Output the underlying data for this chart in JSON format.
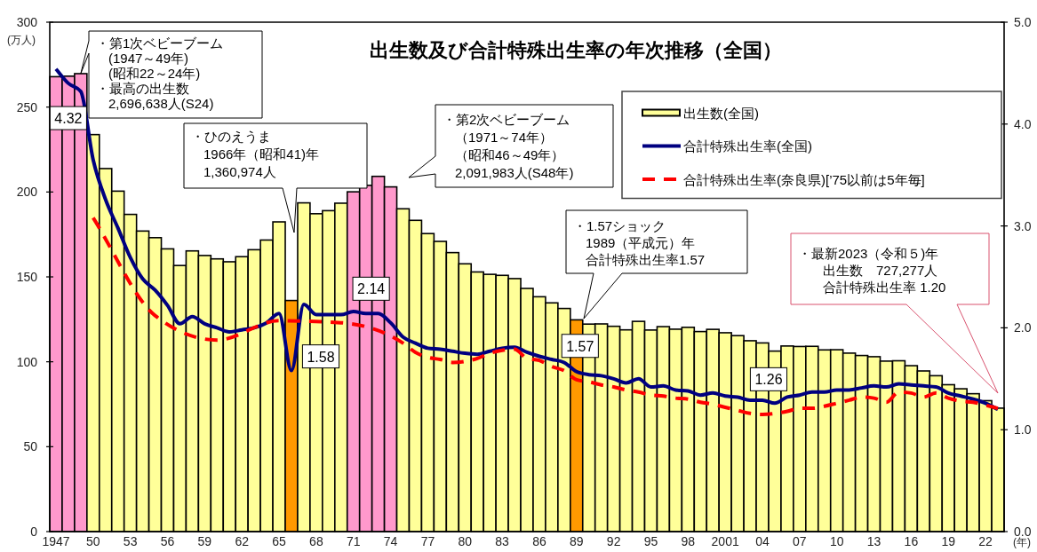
{
  "chart_data": {
    "type": "bar",
    "title": "出生数及び合計特殊出生率の年次推移（全国）",
    "xlabel": "(年)",
    "ylabel": "(万人)",
    "x": [
      1947,
      1948,
      1949,
      1950,
      1951,
      1952,
      1953,
      1954,
      1955,
      1956,
      1957,
      1958,
      1959,
      1960,
      1961,
      1962,
      1963,
      1964,
      1965,
      1966,
      1967,
      1968,
      1969,
      1970,
      1971,
      1972,
      1973,
      1974,
      1975,
      1976,
      1977,
      1978,
      1979,
      1980,
      1981,
      1982,
      1983,
      1984,
      1985,
      1986,
      1987,
      1988,
      1989,
      1990,
      1991,
      1992,
      1993,
      1994,
      1995,
      1996,
      1997,
      1998,
      1999,
      2000,
      2001,
      2002,
      2003,
      2004,
      2005,
      2006,
      2007,
      2008,
      2009,
      2010,
      2011,
      2012,
      2013,
      2014,
      2015,
      2016,
      2017,
      2018,
      2019,
      2020,
      2021,
      2022,
      2023
    ],
    "xlim": [
      1946.5,
      2023.5
    ],
    "xticks": [
      {
        "value": 1947,
        "label": "1947"
      },
      {
        "value": 1950,
        "label": "50"
      },
      {
        "value": 1953,
        "label": "53"
      },
      {
        "value": 1956,
        "label": "56"
      },
      {
        "value": 1959,
        "label": "59"
      },
      {
        "value": 1962,
        "label": "62"
      },
      {
        "value": 1965,
        "label": "65"
      },
      {
        "value": 1968,
        "label": "68"
      },
      {
        "value": 1971,
        "label": "71"
      },
      {
        "value": 1974,
        "label": "74"
      },
      {
        "value": 1977,
        "label": "77"
      },
      {
        "value": 1980,
        "label": "80"
      },
      {
        "value": 1983,
        "label": "83"
      },
      {
        "value": 1986,
        "label": "86"
      },
      {
        "value": 1989,
        "label": "89"
      },
      {
        "value": 1992,
        "label": "92"
      },
      {
        "value": 1995,
        "label": "95"
      },
      {
        "value": 1998,
        "label": "98"
      },
      {
        "value": 2001,
        "label": "2001"
      },
      {
        "value": 2004,
        "label": "04"
      },
      {
        "value": 2007,
        "label": "07"
      },
      {
        "value": 2010,
        "label": "10"
      },
      {
        "value": 2013,
        "label": "13"
      },
      {
        "value": 2016,
        "label": "16"
      },
      {
        "value": 2019,
        "label": "19"
      },
      {
        "value": 2022,
        "label": "22"
      }
    ],
    "ylim": [
      0,
      300
    ],
    "yticks": [
      0,
      50,
      100,
      150,
      200,
      250,
      300
    ],
    "y2lim": [
      0,
      5
    ],
    "y2ticks": [
      {
        "value": 0,
        "label": "0.0"
      },
      {
        "value": 1,
        "label": "1.0"
      },
      {
        "value": 2,
        "label": "2.0"
      },
      {
        "value": 3,
        "label": "3.0"
      },
      {
        "value": 4,
        "label": "4.0"
      },
      {
        "value": 5,
        "label": "5.0"
      }
    ],
    "series": [
      {
        "name": "出生数(全国)",
        "color": "#ffff99",
        "colors": [
          "#ff99cc",
          "#ff99cc",
          "#ff99cc",
          "#ffff99",
          "#ffff99",
          "#ffff99",
          "#ffff99",
          "#ffff99",
          "#ffff99",
          "#ffff99",
          "#ffff99",
          "#ffff99",
          "#ffff99",
          "#ffff99",
          "#ffff99",
          "#ffff99",
          "#ffff99",
          "#ffff99",
          "#ffff99",
          "#ff9900",
          "#ffff99",
          "#ffff99",
          "#ffff99",
          "#ffff99",
          "#ff99cc",
          "#ff99cc",
          "#ff99cc",
          "#ff99cc",
          "#ffff99",
          "#ffff99",
          "#ffff99",
          "#ffff99",
          "#ffff99",
          "#ffff99",
          "#ffff99",
          "#ffff99",
          "#ffff99",
          "#ffff99",
          "#ffff99",
          "#ffff99",
          "#ffff99",
          "#ffff99",
          "#ff9900",
          "#ffff99",
          "#ffff99",
          "#ffff99",
          "#ffff99",
          "#ffff99",
          "#ffff99",
          "#ffff99",
          "#ffff99",
          "#ffff99",
          "#ffff99",
          "#ffff99",
          "#ffff99",
          "#ffff99",
          "#ffff99",
          "#ffff99",
          "#ffff99",
          "#ffff99",
          "#ffff99",
          "#ffff99",
          "#ffff99",
          "#ffff99",
          "#ffff99",
          "#ffff99",
          "#ffff99",
          "#ffff99",
          "#ffff99",
          "#ffff99",
          "#ffff99",
          "#ffff99",
          "#ffff99",
          "#ffff99",
          "#ffff99",
          "#ffff99",
          "#ffff99"
        ],
        "values": [
          267.9,
          268.2,
          269.7,
          233.8,
          213.8,
          200.5,
          186.8,
          177.0,
          173.1,
          166.5,
          156.7,
          165.3,
          162.6,
          160.6,
          158.9,
          161.9,
          166.0,
          171.7,
          182.4,
          136.1,
          193.6,
          187.2,
          189.0,
          193.4,
          200.1,
          203.9,
          209.2,
          203.0,
          190.1,
          183.3,
          175.5,
          170.9,
          164.3,
          157.7,
          152.9,
          151.5,
          150.9,
          149.0,
          143.2,
          138.3,
          134.7,
          131.4,
          124.7,
          122.2,
          122.3,
          120.9,
          118.8,
          123.8,
          118.7,
          120.7,
          119.2,
          120.3,
          117.8,
          119.1,
          117.1,
          115.4,
          112.4,
          111.1,
          106.3,
          109.3,
          109.0,
          109.1,
          107.0,
          107.1,
          105.1,
          103.7,
          103.0,
          100.4,
          100.6,
          97.7,
          94.6,
          91.8,
          86.5,
          84.1,
          81.2,
          77.1,
          72.7
        ]
      },
      {
        "name": "合計特殊出生率(全国)",
        "type": "line",
        "axis": "y2",
        "color": "#000080",
        "values": [
          4.54,
          4.4,
          4.32,
          3.65,
          3.26,
          2.98,
          2.69,
          2.48,
          2.37,
          2.22,
          2.04,
          2.11,
          2.04,
          2.0,
          1.96,
          1.98,
          2.0,
          2.05,
          2.14,
          1.58,
          2.23,
          2.13,
          2.13,
          2.13,
          2.16,
          2.14,
          2.14,
          2.05,
          1.91,
          1.85,
          1.8,
          1.79,
          1.77,
          1.75,
          1.74,
          1.77,
          1.8,
          1.81,
          1.76,
          1.72,
          1.69,
          1.66,
          1.57,
          1.54,
          1.53,
          1.5,
          1.46,
          1.5,
          1.42,
          1.43,
          1.39,
          1.38,
          1.34,
          1.36,
          1.33,
          1.32,
          1.29,
          1.29,
          1.26,
          1.32,
          1.34,
          1.37,
          1.37,
          1.39,
          1.39,
          1.41,
          1.43,
          1.42,
          1.45,
          1.44,
          1.43,
          1.42,
          1.36,
          1.33,
          1.3,
          1.26,
          1.2
        ],
        "value_labels": [
          null,
          null,
          "4.32",
          null,
          null,
          null,
          null,
          null,
          null,
          null,
          null,
          null,
          null,
          null,
          null,
          null,
          null,
          null,
          null,
          "1.58",
          null,
          null,
          null,
          null,
          null,
          null,
          "2.14",
          null,
          null,
          null,
          null,
          null,
          null,
          null,
          null,
          null,
          null,
          null,
          null,
          null,
          null,
          null,
          "1.57",
          null,
          null,
          null,
          null,
          null,
          null,
          null,
          null,
          null,
          null,
          null,
          null,
          null,
          null,
          null,
          "1.26",
          null,
          null,
          null,
          null,
          null,
          null,
          null,
          null,
          null,
          null,
          null,
          null,
          null,
          null,
          null,
          null,
          null,
          null
        ]
      },
      {
        "name": "合計特殊出生率(奈良県)[’75以前は5年毎]",
        "type": "line",
        "axis": "y2",
        "color": "#ff0000",
        "line_style": "dashed",
        "x": [
          1950,
          1955,
          1960,
          1965,
          1970,
          1975,
          1976,
          1977,
          1978,
          1979,
          1980,
          1981,
          1982,
          1983,
          1984,
          1985,
          1986,
          1987,
          1988,
          1989,
          1990,
          1991,
          1992,
          1993,
          1994,
          1995,
          1996,
          1997,
          1998,
          1999,
          2000,
          2001,
          2002,
          2003,
          2004,
          2005,
          2006,
          2007,
          2008,
          2009,
          2010,
          2011,
          2012,
          2013,
          2014,
          2015,
          2016,
          2017,
          2018,
          2019,
          2020,
          2021,
          2022,
          2023
        ],
        "values": [
          3.08,
          2.12,
          1.88,
          2.07,
          2.05,
          1.85,
          1.76,
          1.71,
          1.69,
          1.66,
          1.67,
          1.7,
          1.75,
          1.78,
          1.79,
          1.7,
          1.68,
          1.62,
          1.58,
          1.49,
          1.47,
          1.44,
          1.42,
          1.39,
          1.37,
          1.34,
          1.33,
          1.31,
          1.3,
          1.27,
          1.25,
          1.22,
          1.19,
          1.16,
          1.15,
          1.16,
          1.18,
          1.21,
          1.21,
          1.23,
          1.26,
          1.29,
          1.32,
          1.31,
          1.27,
          1.37,
          1.36,
          1.32,
          1.36,
          1.31,
          1.28,
          1.27,
          1.24,
          1.21
        ]
      }
    ],
    "legend": "top right",
    "annotations": [
      {
        "text": "・第1次ベビーブーム\n(1947～49年)\n(昭和22～24年)\n・最高の出生数\n2,696,638人(S24)",
        "x": 1949,
        "y": 269.7
      },
      "・ひのえうま\n1966年（昭和41)年\n1,360,974人",
      "・第2次ベビーブーム（1971～74年）（昭和46～49年）\n2,091,983人(S48年)",
      "・1.57ショック\n1989（平成元）年合計特殊出生率1.57",
      "・最新2023（令和５)年出生数　727,277人合計特殊出生率 1.20"
    ]
  }
}
